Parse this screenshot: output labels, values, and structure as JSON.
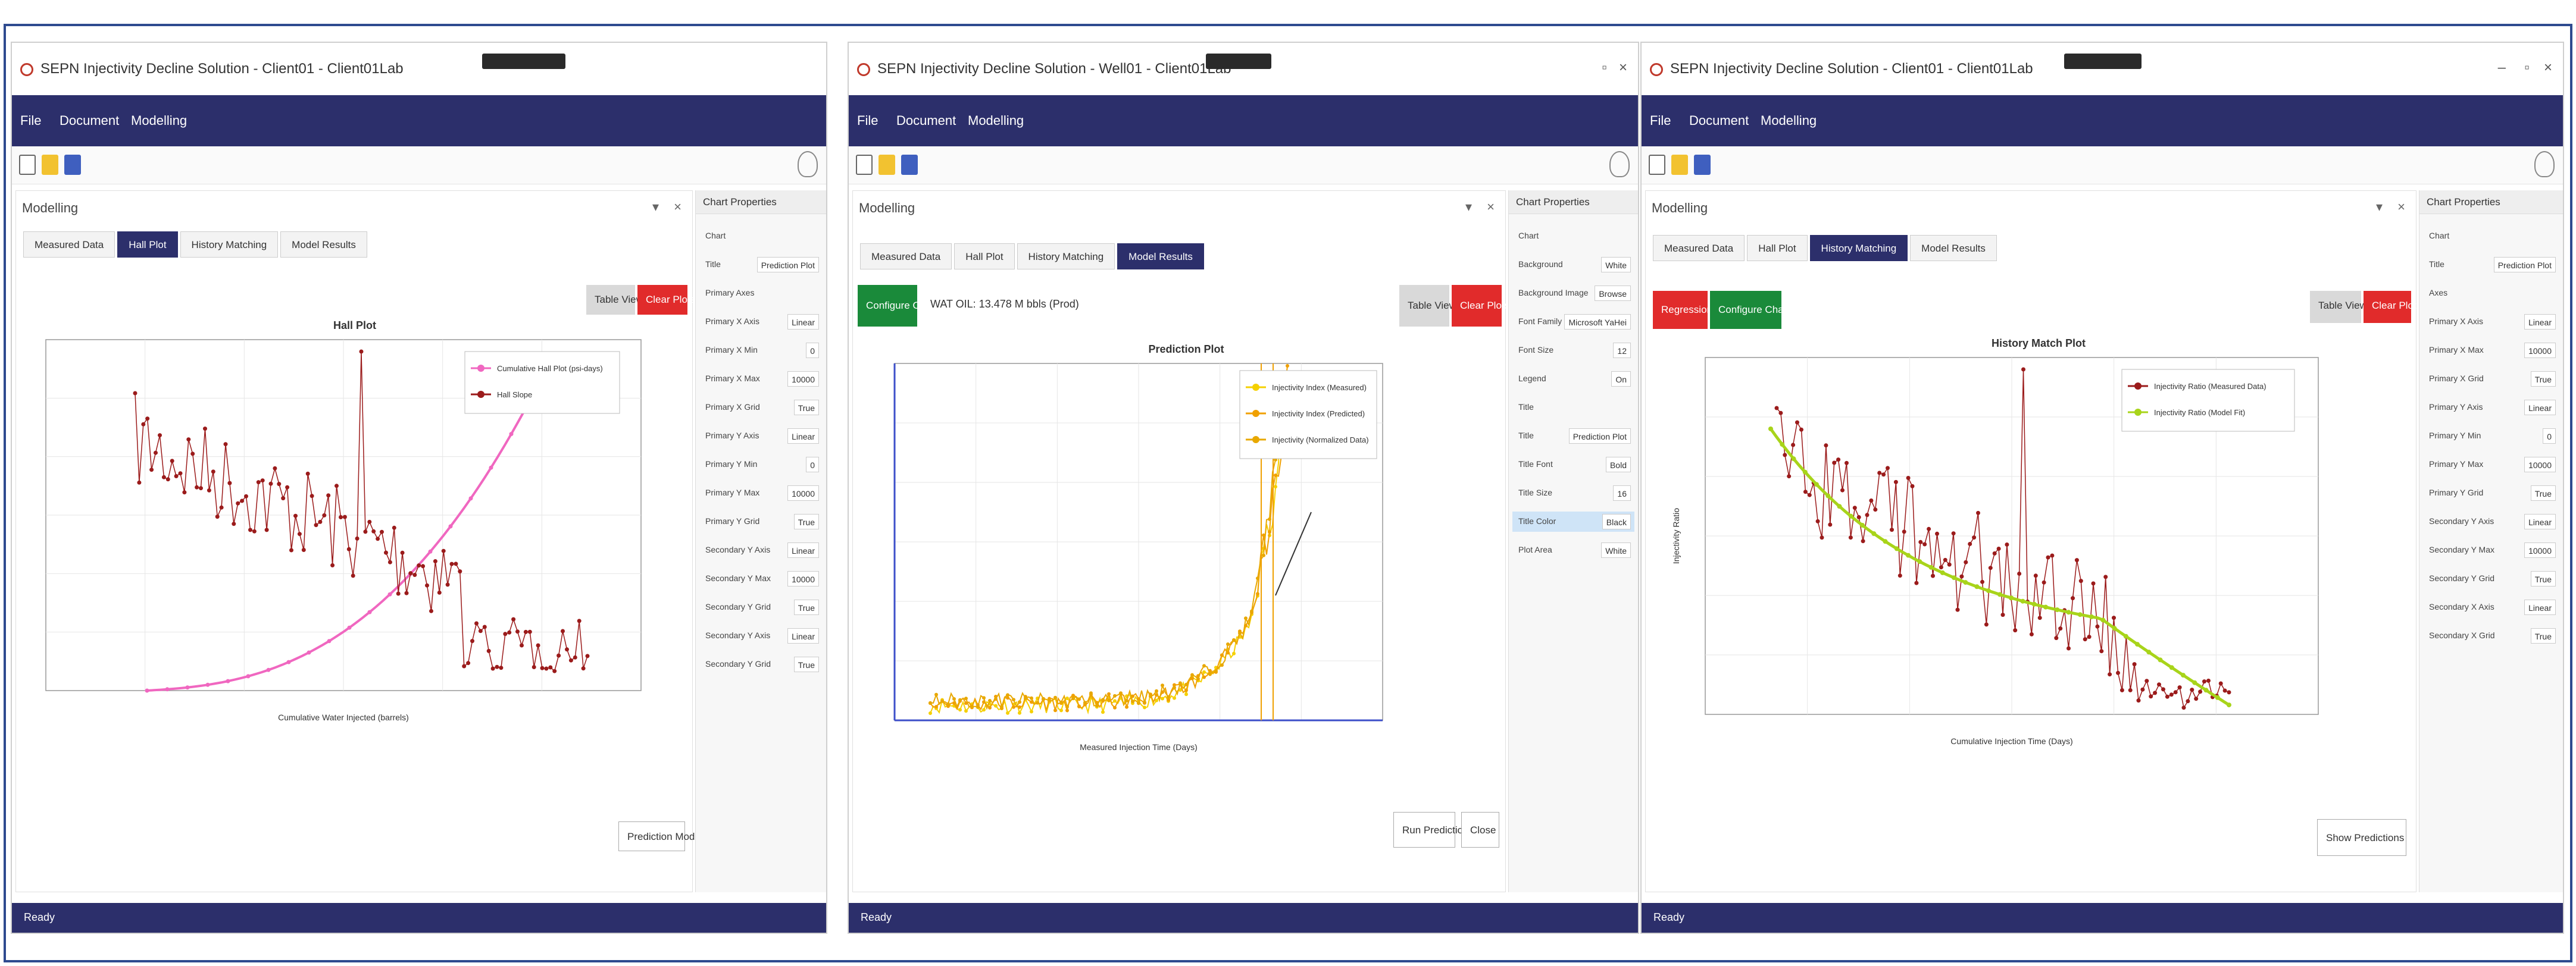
{
  "windows": [
    {
      "title": "SEPN Injectivity Decline Solution - Client01 - Client01Lab",
      "menu": [
        "File",
        "Document",
        "Modelling"
      ],
      "panel_title": "Modelling",
      "tabs": [
        {
          "label": "Measured Data",
          "active": false
        },
        {
          "label": "Hall Plot",
          "active": true
        },
        {
          "label": "History Matching",
          "active": false
        },
        {
          "label": "Model Results",
          "active": false
        }
      ],
      "buttons": {
        "top_gray": "Table View",
        "top_red": "Clear Plots",
        "bottom": "Prediction Model"
      },
      "props": {
        "header": "Chart Properties",
        "rows": [
          {
            "k": "Chart",
            "v": ""
          },
          {
            "k": "Title",
            "v": "Prediction Plot"
          },
          {
            "k": "Primary Axes",
            "v": ""
          },
          {
            "k": "Primary X Axis",
            "v": "Linear"
          },
          {
            "k": "Primary X Min",
            "v": "0"
          },
          {
            "k": "Primary X Max",
            "v": "10000"
          },
          {
            "k": "Primary X Grid",
            "v": "True"
          },
          {
            "k": "Primary Y Axis",
            "v": "Linear"
          },
          {
            "k": "Primary Y Min",
            "v": "0"
          },
          {
            "k": "Primary Y Max",
            "v": "10000"
          },
          {
            "k": "Primary Y Grid",
            "v": "True"
          },
          {
            "k": "Secondary Y Axis",
            "v": "Linear"
          },
          {
            "k": "Secondary Y Max",
            "v": "10000"
          },
          {
            "k": "Secondary Y Grid",
            "v": "True"
          },
          {
            "k": "Secondary Y Axis",
            "v": "Linear"
          },
          {
            "k": "Secondary Y Grid",
            "v": "True"
          }
        ]
      },
      "status": "Ready"
    },
    {
      "title": "SEPN Injectivity Decline Solution - Well01 - Client01Lab",
      "menu": [
        "File",
        "Document",
        "Modelling"
      ],
      "panel_title": "Modelling",
      "tabs": [
        {
          "label": "Measured Data",
          "active": false
        },
        {
          "label": "Hall Plot",
          "active": false
        },
        {
          "label": "History Matching",
          "active": false
        },
        {
          "label": "Model Results",
          "active": true
        }
      ],
      "buttons": {
        "configure": "Configure Chart",
        "top_gray": "Table View",
        "top_red": "Clear Plots",
        "run": "Run Prediction",
        "close": "Close"
      },
      "note": "WAT OIL: 13.478 M bbls (Prod)",
      "props": {
        "header": "Chart Properties",
        "rows": [
          {
            "k": "Chart",
            "v": ""
          },
          {
            "k": "Background",
            "v": "White"
          },
          {
            "k": "Background Image",
            "v": "Browse"
          },
          {
            "k": "Font Family",
            "v": "Microsoft YaHei"
          },
          {
            "k": "Font Size",
            "v": "12"
          },
          {
            "k": "Legend",
            "v": "On"
          },
          {
            "k": "Title",
            "v": ""
          },
          {
            "k": "Title",
            "v": "Prediction Plot"
          },
          {
            "k": "Title Font",
            "v": "Bold"
          },
          {
            "k": "Title Size",
            "v": "16"
          },
          {
            "k": "Title Color",
            "v": "Black"
          },
          {
            "k": "Plot Area",
            "v": "White"
          }
        ]
      },
      "status": "Ready"
    },
    {
      "title": "SEPN Injectivity Decline Solution - Client01 - Client01Lab",
      "menu": [
        "File",
        "Document",
        "Modelling"
      ],
      "panel_title": "Modelling",
      "tabs": [
        {
          "label": "Measured Data",
          "active": false
        },
        {
          "label": "Hall Plot",
          "active": false
        },
        {
          "label": "History Matching",
          "active": true
        },
        {
          "label": "Model Results",
          "active": false
        }
      ],
      "buttons": {
        "regression": "Regression",
        "configure": "Configure Chart",
        "top_gray": "Table View",
        "top_red": "Clear Plots",
        "bottom": "Show Predictions"
      },
      "props": {
        "header": "Chart Properties",
        "rows": [
          {
            "k": "Chart",
            "v": ""
          },
          {
            "k": "Title",
            "v": "Prediction Plot"
          },
          {
            "k": "Axes",
            "v": ""
          },
          {
            "k": "Primary X Axis",
            "v": "Linear"
          },
          {
            "k": "Primary X Max",
            "v": "10000"
          },
          {
            "k": "Primary X Grid",
            "v": "True"
          },
          {
            "k": "Primary Y Axis",
            "v": "Linear"
          },
          {
            "k": "Primary Y Min",
            "v": "0"
          },
          {
            "k": "Primary Y Max",
            "v": "10000"
          },
          {
            "k": "Primary Y Grid",
            "v": "True"
          },
          {
            "k": "Secondary Y Axis",
            "v": "Linear"
          },
          {
            "k": "Secondary Y Max",
            "v": "10000"
          },
          {
            "k": "Secondary Y Grid",
            "v": "True"
          },
          {
            "k": "Secondary X Axis",
            "v": "Linear"
          },
          {
            "k": "Secondary X Grid",
            "v": "True"
          }
        ]
      },
      "status": "Ready"
    }
  ],
  "chart_data": [
    {
      "type": "line",
      "title": "Hall Plot",
      "xlabel": "Cumulative Water Injected (barrels)",
      "ylabel": "",
      "series": [
        {
          "name": "Cumulative Hall Plot (psi-days)",
          "color": "#f067c0"
        },
        {
          "name": "Hall Slope",
          "color": "#9b1b1b"
        }
      ],
      "legend": "top-right",
      "grid": true
    },
    {
      "type": "line",
      "title": "Prediction Plot",
      "xlabel": "Measured Injection Time (Days)",
      "ylabel": "",
      "series": [
        {
          "name": "Injectivity Index (Measured)",
          "color": "#f5d000"
        },
        {
          "name": "Injectivity Index (Predicted)",
          "color": "#f0a000"
        },
        {
          "name": "Injectivity (Normalized Data)",
          "color": "#e8a800"
        }
      ],
      "legend": "top-right",
      "grid": true
    },
    {
      "type": "line",
      "title": "History Match Plot",
      "xlabel": "Cumulative Injection Time (Days)",
      "ylabel": "Injectivity Ratio",
      "series": [
        {
          "name": "Injectivity Ratio (Measured Data)",
          "color": "#9b1b1b"
        },
        {
          "name": "Injectivity Ratio (Model Fit)",
          "color": "#a8d41a"
        }
      ],
      "legend": "top-right",
      "grid": true
    }
  ]
}
